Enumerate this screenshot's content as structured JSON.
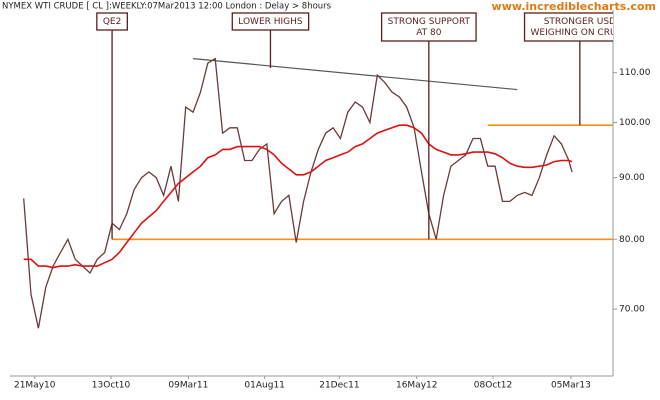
{
  "chart_data": {
    "type": "line",
    "title": "NYMEX WTI CRUDE [ CL ]:WEEKLY:07Mar2013 12:00 London : Delay > 8hours",
    "source": "www.incrediblecharts.com",
    "log_scale": true,
    "x": [
      "2010-04-30",
      "2010-05-14",
      "2010-05-28",
      "2010-06-11",
      "2010-06-25",
      "2010-07-09",
      "2010-07-23",
      "2010-08-06",
      "2010-08-20",
      "2010-09-03",
      "2010-09-17",
      "2010-10-01",
      "2010-10-15",
      "2010-10-29",
      "2010-11-12",
      "2010-11-26",
      "2010-12-10",
      "2010-12-24",
      "2011-01-07",
      "2011-01-21",
      "2011-02-04",
      "2011-02-18",
      "2011-03-04",
      "2011-03-18",
      "2011-04-01",
      "2011-04-15",
      "2011-04-29",
      "2011-05-13",
      "2011-05-27",
      "2011-06-10",
      "2011-06-24",
      "2011-07-08",
      "2011-07-22",
      "2011-08-05",
      "2011-08-19",
      "2011-09-02",
      "2011-09-16",
      "2011-09-30",
      "2011-10-14",
      "2011-10-28",
      "2011-11-11",
      "2011-11-25",
      "2011-12-09",
      "2011-12-23",
      "2012-01-06",
      "2012-01-20",
      "2012-02-03",
      "2012-02-17",
      "2012-03-02",
      "2012-03-16",
      "2012-03-30",
      "2012-04-13",
      "2012-04-27",
      "2012-05-11",
      "2012-05-25",
      "2012-06-08",
      "2012-06-22",
      "2012-07-06",
      "2012-07-20",
      "2012-08-03",
      "2012-08-17",
      "2012-08-31",
      "2012-09-14",
      "2012-09-28",
      "2012-10-12",
      "2012-10-26",
      "2012-11-09",
      "2012-11-23",
      "2012-12-07",
      "2012-12-21",
      "2013-01-04",
      "2013-01-18",
      "2013-02-01",
      "2013-02-15",
      "2013-03-01",
      "2013-03-07"
    ],
    "series": [
      {
        "color": "#6b3a3a",
        "values": [
          86.5,
          72,
          67.5,
          73,
          76,
          78,
          80,
          77,
          76,
          75,
          77,
          78,
          82.5,
          81.5,
          84,
          88,
          90,
          91,
          90,
          87,
          92,
          86,
          103,
          102,
          106,
          112,
          113,
          98,
          99,
          99,
          93,
          93,
          95,
          96,
          84,
          86,
          87,
          79.5,
          86,
          91,
          95,
          98,
          99,
          97,
          102,
          104,
          103,
          100,
          109.5,
          108,
          106,
          105,
          103,
          99,
          91,
          84,
          80,
          87,
          92,
          93,
          94,
          97,
          97,
          92,
          92,
          86,
          86,
          87,
          87.5,
          87,
          90,
          94,
          97.5,
          96,
          93,
          91
        ]
      },
      {
        "color": "#dd1111",
        "values": [
          77,
          77,
          76,
          76,
          75.8,
          76,
          76,
          76.2,
          76,
          76,
          76,
          76.5,
          77,
          78,
          79.5,
          81,
          82.5,
          83.5,
          84.5,
          86,
          87.5,
          89,
          90,
          91,
          92,
          93.5,
          94,
          95,
          95,
          95.5,
          95.5,
          95.5,
          95.5,
          95,
          94,
          92.5,
          91.5,
          90.5,
          90.5,
          91,
          92,
          93,
          93.5,
          94,
          94.5,
          95.5,
          96,
          97,
          98,
          98.5,
          99,
          99.5,
          99.5,
          99,
          98,
          96,
          95,
          94.5,
          94,
          94,
          94.2,
          94.5,
          94.5,
          94.5,
          94.2,
          93.5,
          92.5,
          92,
          91.8,
          91.8,
          92,
          92.2,
          92.8,
          93,
          93,
          92.8
        ]
      }
    ],
    "levels": [
      {
        "y": 80,
        "x_start": "2010-10-15",
        "color": "#ff8c1a"
      },
      {
        "y": 99.5,
        "x_start": "2012-09-28",
        "color": "#ff8c1a"
      }
    ],
    "trendline": {
      "x": [
        "2011-03-18",
        "2012-11-23"
      ],
      "y": [
        113,
        106.5
      ],
      "color": "#555555"
    },
    "annotations": [
      {
        "lines": [
          "QE2"
        ],
        "x": "2010-10-15",
        "y": 80
      },
      {
        "lines": [
          "LOWER HIGHS"
        ],
        "x": "2011-08-12",
        "y": 111
      },
      {
        "lines": [
          "STRONG SUPPORT",
          "AT 80"
        ],
        "x": "2012-06-08",
        "y": 80
      },
      {
        "lines": [
          "STRONGER USD",
          "WEIGHING ON CRUDE"
        ],
        "x": "2013-03-22",
        "y": 99.5
      }
    ],
    "xlim": [
      "2010-04-04",
      "2013-05-24"
    ],
    "xticks": [
      {
        "value": "2010-05-21",
        "label": "21May10"
      },
      {
        "value": "2010-10-13",
        "label": "13Oct10"
      },
      {
        "value": "2011-03-09",
        "label": "09Mar11"
      },
      {
        "value": "2011-08-01",
        "label": "01Aug11"
      },
      {
        "value": "2011-12-21",
        "label": "21Dec11"
      },
      {
        "value": "2012-05-16",
        "label": "16May12"
      },
      {
        "value": "2012-10-08",
        "label": "08Oct12"
      },
      {
        "value": "2013-03-05",
        "label": "05Mar13"
      }
    ],
    "ylim": [
      61.6,
      124
    ],
    "yticks": [
      {
        "value": 70,
        "label": "70.00"
      },
      {
        "value": 80,
        "label": "80.00"
      },
      {
        "value": 90,
        "label": "90.00"
      },
      {
        "value": 100,
        "label": "100.00"
      },
      {
        "value": 110,
        "label": "110.00"
      }
    ]
  }
}
